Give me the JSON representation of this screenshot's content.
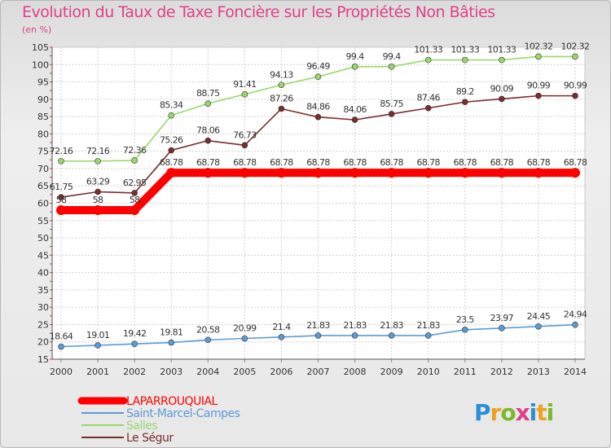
{
  "title": "Evolution du Taux de Taxe Foncière sur les Propriétés Non Bâties",
  "subtitle": "(en %)",
  "logo": {
    "text": "Proxiti",
    "letters": [
      {
        "ch": "P",
        "color": "#2a8fd6"
      },
      {
        "ch": "r",
        "color": "#f0a020"
      },
      {
        "ch": "o",
        "color": "#7ab82e"
      },
      {
        "ch": "x",
        "color": "#e0408a"
      },
      {
        "ch": "i",
        "color": "#2a8fd6"
      },
      {
        "ch": "t",
        "color": "#f0a020"
      },
      {
        "ch": "i",
        "color": "#7ab82e"
      }
    ]
  },
  "chart_data": {
    "type": "line",
    "title": "Evolution du Taux de Taxe Foncière sur les Propriétés Non Bâties",
    "ylabel": "(en %)",
    "xlabel": "",
    "x": [
      "2000",
      "2001",
      "2002",
      "2003",
      "2004",
      "2005",
      "2006",
      "2007",
      "2008",
      "2009",
      "2010",
      "2011",
      "2012",
      "2013",
      "2014"
    ],
    "ylim": [
      15,
      105
    ],
    "yticks": [
      15,
      20,
      25,
      30,
      35,
      40,
      45,
      50,
      55,
      60,
      65,
      70,
      75,
      80,
      85,
      90,
      95,
      100,
      105
    ],
    "series": [
      {
        "name": "LAPARROUQUIAL",
        "color": "#ff0000",
        "values": [
          58,
          58,
          58,
          68.78,
          68.78,
          68.78,
          68.78,
          68.78,
          68.78,
          68.78,
          68.78,
          68.78,
          68.78,
          68.78,
          68.78
        ],
        "labels": [
          "58",
          "58",
          "58",
          "68.78",
          "68.78",
          "68.78",
          "68.78",
          "68.78",
          "68.78",
          "68.78",
          "68.78",
          "68.78",
          "68.78",
          "68.78",
          "68.78"
        ]
      },
      {
        "name": "Saint-Marcel-Campes",
        "color": "#5b9bd5",
        "values": [
          18.64,
          19.01,
          19.42,
          19.81,
          20.58,
          20.99,
          21.4,
          21.83,
          21.83,
          21.83,
          21.83,
          23.5,
          23.97,
          24.45,
          24.94
        ],
        "labels": [
          "18.64",
          "19.01",
          "19.42",
          "19.81",
          "20.58",
          "20.99",
          "21.4",
          "21.83",
          "21.83",
          "21.83",
          "21.83",
          "23.5",
          "23.97",
          "24.45",
          "24.94"
        ]
      },
      {
        "name": "Salles",
        "color": "#99d76c",
        "values": [
          72.16,
          72.16,
          72.36,
          85.34,
          88.75,
          91.41,
          94.13,
          96.49,
          99.4,
          99.4,
          101.33,
          101.33,
          101.33,
          102.32,
          102.32
        ],
        "labels": [
          "72.16",
          "72.16",
          "72.36",
          "85.34",
          "88.75",
          "91.41",
          "94.13",
          "96.49",
          "99.4",
          "99.4",
          "101.33",
          "101.33",
          "101.33",
          "102.32",
          "102.32"
        ]
      },
      {
        "name": "Le Ségur",
        "color": "#7b2d2d",
        "values": [
          61.75,
          63.29,
          62.95,
          75.26,
          78.06,
          76.73,
          87.26,
          84.86,
          84.06,
          85.75,
          87.46,
          89.2,
          90.09,
          90.99,
          90.99
        ],
        "labels": [
          "61.75",
          "63.29",
          "62.95",
          "75.26",
          "78.06",
          "76.73",
          "87.26",
          "84.86",
          "84.06",
          "85.75",
          "87.46",
          "89.2",
          "90.09",
          "90.99",
          "90.99"
        ]
      }
    ],
    "legend": [
      "LAPARROUQUIAL",
      "Saint-Marcel-Campes",
      "Salles",
      "Le Ségur"
    ]
  }
}
